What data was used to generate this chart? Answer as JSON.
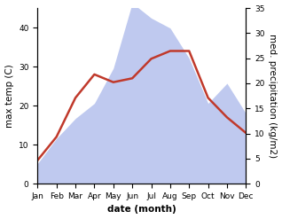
{
  "months": [
    "Jan",
    "Feb",
    "Mar",
    "Apr",
    "May",
    "Jun",
    "Jul",
    "Aug",
    "Sep",
    "Oct",
    "Nov",
    "Dec"
  ],
  "temperature": [
    6,
    12,
    22,
    28,
    26,
    27,
    32,
    34,
    34,
    22,
    17,
    13
  ],
  "precipitation": [
    4,
    9,
    13,
    16,
    23,
    36,
    33,
    31,
    25,
    16,
    20,
    14
  ],
  "temp_color": "#c0392b",
  "precip_color": "#b8c4ee",
  "temp_ylim": [
    0,
    45
  ],
  "precip_ylim": [
    0,
    35
  ],
  "temp_yticks": [
    0,
    10,
    20,
    30,
    40
  ],
  "precip_yticks": [
    0,
    5,
    10,
    15,
    20,
    25,
    30,
    35
  ],
  "xlabel": "date (month)",
  "ylabel_left": "max temp (C)",
  "ylabel_right": "med. precipitation (kg/m2)",
  "bg_color": "#ffffff",
  "label_fontsize": 7.5,
  "tick_fontsize": 6.5,
  "linewidth": 1.8
}
